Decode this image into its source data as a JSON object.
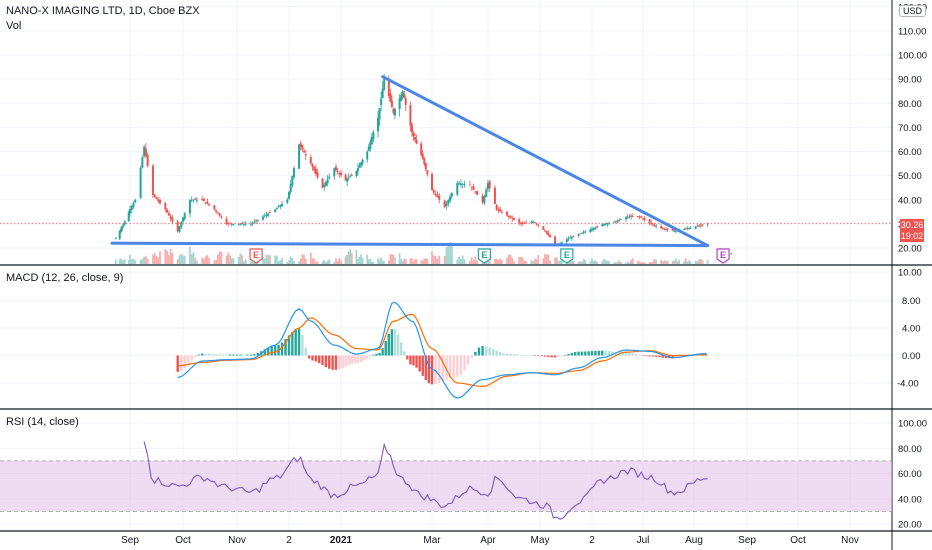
{
  "symbol_label": "NANO-X IMAGING LTD, 1D, Cboe BZX",
  "volume_label": "Vol",
  "macd_label": "MACD (12, 26, close, 9)",
  "rsi_label": "RSI (14, close)",
  "currency": "USD",
  "last_price": "30.26",
  "countdown": "19:02",
  "earnings_marker": "E",
  "colors": {
    "up": "#26a69a",
    "down": "#ef5350",
    "trendline": "#4a86e8",
    "macd_line": "#2196f3",
    "signal_line": "#ff6d00",
    "hist_pos_strong": "#26a69a",
    "hist_pos_weak": "#b2dfdb",
    "hist_neg_strong": "#ef5350",
    "hist_neg_weak": "#ffcdd2",
    "rsi_line": "#7e57c2",
    "rsi_band": "#e1bee7",
    "earnings_red": "#ef5350",
    "earnings_green": "#26a69a",
    "earnings_purple": "#ab47bc"
  },
  "chart_data": [
    {
      "type": "candlestick",
      "pane": "price",
      "x_tick_labels": [
        "Sep",
        "Oct",
        "Nov",
        "2",
        "2021",
        "Mar",
        "Apr",
        "May",
        "2",
        "Jul",
        "Aug",
        "Sep",
        "Oct",
        "Nov"
      ],
      "y_tick_labels": [
        "120.00",
        "110.00",
        "100.00",
        "90.00",
        "80.00",
        "70.00",
        "60.00",
        "50.00",
        "40.00",
        "30.00",
        "20.00",
        "10.00"
      ],
      "ylim": [
        10,
        120
      ],
      "close_series": [
        {
          "date": "2020-08-21",
          "value": 24
        },
        {
          "date": "2020-08-28",
          "value": 31
        },
        {
          "date": "2020-09-04",
          "value": 40
        },
        {
          "date": "2020-09-09",
          "value": 62
        },
        {
          "date": "2020-09-14",
          "value": 42
        },
        {
          "date": "2020-09-21",
          "value": 36
        },
        {
          "date": "2020-09-28",
          "value": 27
        },
        {
          "date": "2020-10-05",
          "value": 40
        },
        {
          "date": "2020-10-12",
          "value": 40
        },
        {
          "date": "2020-10-19",
          "value": 36
        },
        {
          "date": "2020-10-26",
          "value": 30
        },
        {
          "date": "2020-11-09",
          "value": 30
        },
        {
          "date": "2020-11-23",
          "value": 36
        },
        {
          "date": "2020-11-30",
          "value": 40
        },
        {
          "date": "2020-12-07",
          "value": 63
        },
        {
          "date": "2020-12-14",
          "value": 55
        },
        {
          "date": "2020-12-21",
          "value": 45
        },
        {
          "date": "2020-12-28",
          "value": 53
        },
        {
          "date": "2021-01-04",
          "value": 48
        },
        {
          "date": "2021-01-11",
          "value": 52
        },
        {
          "date": "2021-01-18",
          "value": 60
        },
        {
          "date": "2021-01-25",
          "value": 74
        },
        {
          "date": "2021-01-29",
          "value": 90
        },
        {
          "date": "2021-02-04",
          "value": 76
        },
        {
          "date": "2021-02-10",
          "value": 85
        },
        {
          "date": "2021-02-16",
          "value": 68
        },
        {
          "date": "2021-02-23",
          "value": 57
        },
        {
          "date": "2021-03-01",
          "value": 44
        },
        {
          "date": "2021-03-08",
          "value": 37
        },
        {
          "date": "2021-03-15",
          "value": 47
        },
        {
          "date": "2021-03-22",
          "value": 46
        },
        {
          "date": "2021-03-29",
          "value": 39
        },
        {
          "date": "2021-04-01",
          "value": 47
        },
        {
          "date": "2021-04-06",
          "value": 36
        },
        {
          "date": "2021-04-13",
          "value": 33
        },
        {
          "date": "2021-04-20",
          "value": 30
        },
        {
          "date": "2021-04-27",
          "value": 31
        },
        {
          "date": "2021-05-04",
          "value": 27
        },
        {
          "date": "2021-05-11",
          "value": 21
        },
        {
          "date": "2021-05-18",
          "value": 24
        },
        {
          "date": "2021-05-25",
          "value": 26
        },
        {
          "date": "2021-06-01",
          "value": 28
        },
        {
          "date": "2021-06-08",
          "value": 30
        },
        {
          "date": "2021-06-15",
          "value": 31
        },
        {
          "date": "2021-06-22",
          "value": 33
        },
        {
          "date": "2021-06-29",
          "value": 33
        },
        {
          "date": "2021-07-06",
          "value": 30
        },
        {
          "date": "2021-07-13",
          "value": 28
        },
        {
          "date": "2021-07-20",
          "value": 27
        },
        {
          "date": "2021-07-27",
          "value": 28
        },
        {
          "date": "2021-08-03",
          "value": 29
        },
        {
          "date": "2021-08-09",
          "value": 30.26
        }
      ],
      "trendlines": [
        {
          "name": "descending resistance",
          "points": [
            {
              "date": "2021-01-28",
              "value": 91
            },
            {
              "date": "2021-08-09",
              "value": 21
            }
          ]
        },
        {
          "name": "horizontal support",
          "points": [
            {
              "date": "2020-08-18",
              "value": 22
            },
            {
              "date": "2021-08-09",
              "value": 21
            }
          ]
        }
      ],
      "earnings_markers": [
        {
          "date": "2020-11-12",
          "label": "E",
          "color": "red"
        },
        {
          "date": "2021-03-30",
          "label": "E",
          "color": "green"
        },
        {
          "date": "2021-05-17",
          "label": "E",
          "color": "green"
        },
        {
          "date": "2021-08-18",
          "label": "E",
          "color": "purple"
        }
      ],
      "volume_bars": [
        3,
        5,
        4,
        8,
        10,
        6,
        12,
        4,
        5,
        7,
        6,
        3,
        4,
        5,
        3,
        4,
        6,
        3,
        3,
        4,
        8,
        5,
        3,
        4,
        6,
        3,
        3,
        4,
        7,
        12,
        6,
        4,
        3,
        3,
        5,
        4,
        3,
        6,
        4,
        3,
        2,
        3,
        3,
        2,
        2,
        3,
        2,
        3,
        2,
        3,
        2,
        3
      ]
    },
    {
      "type": "line",
      "pane": "MACD",
      "y_tick_labels": [
        "8.00",
        "4.00",
        "0.00",
        "-4.00"
      ],
      "ylim": [
        -7,
        10
      ],
      "x": [
        "2020-09-28",
        "2020-10-12",
        "2020-10-26",
        "2020-11-09",
        "2020-11-23",
        "2020-12-07",
        "2020-12-14",
        "2020-12-28",
        "2021-01-11",
        "2021-01-25",
        "2021-02-04",
        "2021-02-16",
        "2021-03-01",
        "2021-03-15",
        "2021-03-29",
        "2021-04-12",
        "2021-04-26",
        "2021-05-10",
        "2021-05-24",
        "2021-06-07",
        "2021-06-21",
        "2021-07-05",
        "2021-07-19",
        "2021-08-09"
      ],
      "series": [
        {
          "name": "MACD",
          "values": [
            -3.2,
            -0.8,
            -0.6,
            -0.5,
            1.5,
            6.8,
            5.0,
            1.5,
            0.2,
            1.0,
            7.8,
            5.0,
            -2.0,
            -6.2,
            -3.5,
            -2.8,
            -2.5,
            -2.8,
            -1.8,
            -0.3,
            0.8,
            0.6,
            -0.3,
            0.3
          ]
        },
        {
          "name": "Signal",
          "values": [
            -1.5,
            -1.0,
            -0.7,
            -0.6,
            0.5,
            4.0,
            5.5,
            3.0,
            1.0,
            0.8,
            5.0,
            6.0,
            1.0,
            -4.0,
            -4.5,
            -3.0,
            -2.5,
            -2.6,
            -2.2,
            -0.8,
            0.5,
            0.7,
            0.0,
            0.1
          ]
        }
      ]
    },
    {
      "type": "line",
      "pane": "RSI",
      "y_tick_labels": [
        "100.00",
        "80.00",
        "60.00",
        "40.00",
        "20.00"
      ],
      "ylim": [
        20,
        100
      ],
      "band": [
        30,
        70
      ],
      "x": [
        "2020-09-09",
        "2020-09-14",
        "2020-09-28",
        "2020-10-12",
        "2020-10-26",
        "2020-11-09",
        "2020-11-23",
        "2020-12-07",
        "2020-12-14",
        "2020-12-28",
        "2021-01-11",
        "2021-01-25",
        "2021-01-29",
        "2021-02-10",
        "2021-02-23",
        "2021-03-08",
        "2021-03-22",
        "2021-04-01",
        "2021-04-06",
        "2021-04-20",
        "2021-05-04",
        "2021-05-11",
        "2021-05-25",
        "2021-06-08",
        "2021-06-22",
        "2021-07-06",
        "2021-07-20",
        "2021-08-09"
      ],
      "series": [
        {
          "name": "RSI",
          "values": [
            88,
            55,
            50,
            57,
            49,
            45,
            56,
            72,
            55,
            43,
            50,
            58,
            80,
            55,
            42,
            35,
            48,
            45,
            56,
            40,
            35,
            25,
            38,
            55,
            62,
            57,
            45,
            57
          ]
        }
      ]
    }
  ]
}
